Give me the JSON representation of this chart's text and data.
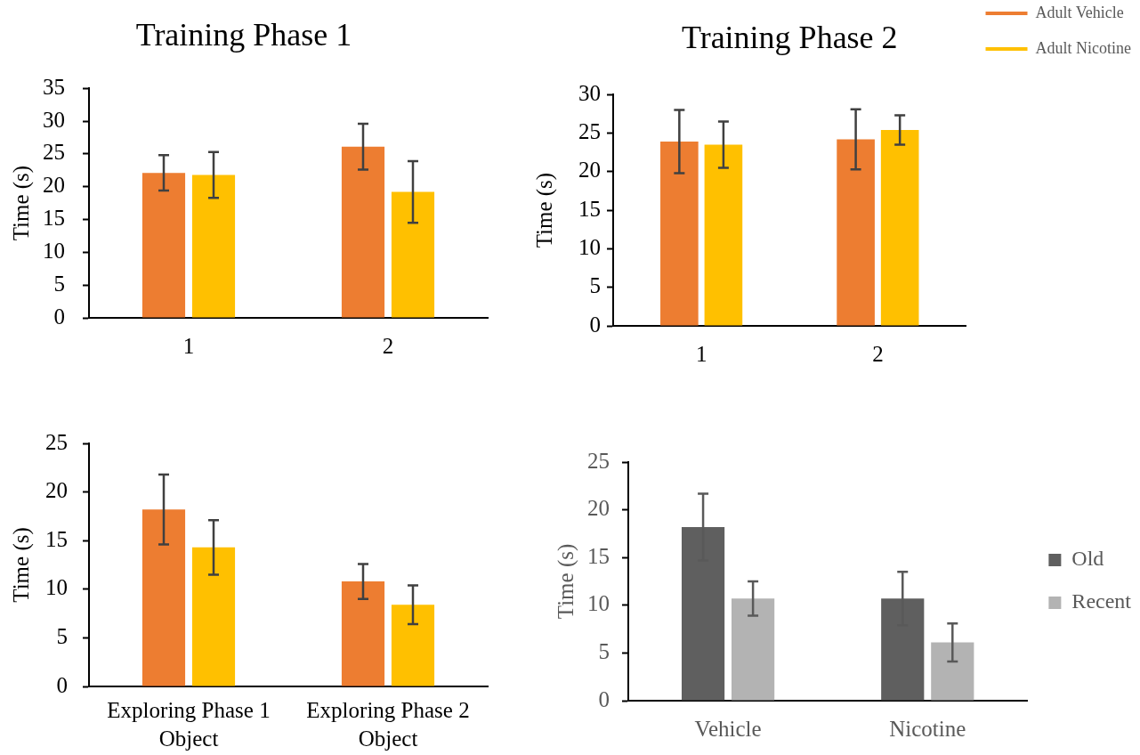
{
  "chart_data": [
    {
      "type": "bar",
      "title": "Training Phase 1",
      "ylabel": "Time (s)",
      "categories": [
        "1",
        "2"
      ],
      "series": [
        {
          "color": "#ed7d31",
          "values": [
            22.1,
            26.1
          ],
          "errors": [
            2.7,
            3.5
          ]
        },
        {
          "color": "#ffc000",
          "values": [
            21.8,
            19.2
          ],
          "errors": [
            3.5,
            4.7
          ]
        }
      ],
      "ylim": [
        0,
        35
      ],
      "yticks": [
        0,
        5,
        10,
        15,
        20,
        25,
        30,
        35
      ]
    },
    {
      "type": "bar",
      "title": "Training Phase 2",
      "ylabel": "Time (s)",
      "categories": [
        "1",
        "2"
      ],
      "series": [
        {
          "name": "Adult Vehicle",
          "color": "#ed7d31",
          "values": [
            23.9,
            24.2
          ],
          "errors": [
            4.1,
            3.9
          ]
        },
        {
          "name": "Adult Nicotine",
          "color": "#ffc000",
          "values": [
            23.5,
            25.4
          ],
          "errors": [
            3.0,
            1.9
          ]
        }
      ],
      "ylim": [
        0,
        30
      ],
      "yticks": [
        0,
        5,
        10,
        15,
        20,
        25,
        30
      ],
      "legend": "top right"
    },
    {
      "type": "bar",
      "ylabel": "Time (s)",
      "categories": [
        "Exploring Phase 1 Object",
        "Exploring Phase 2 Object"
      ],
      "series": [
        {
          "color": "#ed7d31",
          "values": [
            18.2,
            10.8
          ],
          "errors": [
            3.6,
            1.8
          ]
        },
        {
          "color": "#ffc000",
          "values": [
            14.3,
            8.4
          ],
          "errors": [
            2.8,
            2.0
          ]
        }
      ],
      "ylim": [
        0,
        25
      ],
      "yticks": [
        0,
        5,
        10,
        15,
        20,
        25
      ]
    },
    {
      "type": "bar",
      "ylabel": "Time (s)",
      "categories": [
        "Vehicle",
        "Nicotine"
      ],
      "series": [
        {
          "name": "Old",
          "color": "#5f5f5f",
          "values": [
            18.2,
            10.7
          ],
          "errors": [
            3.5,
            2.8
          ]
        },
        {
          "name": "Recent",
          "color": "#b3b3b3",
          "values": [
            10.7,
            6.1
          ],
          "errors": [
            1.8,
            2.0
          ]
        }
      ],
      "ylim": [
        0,
        25
      ],
      "yticks": [
        0,
        5,
        10,
        15,
        20,
        25
      ],
      "legend": "right"
    }
  ]
}
